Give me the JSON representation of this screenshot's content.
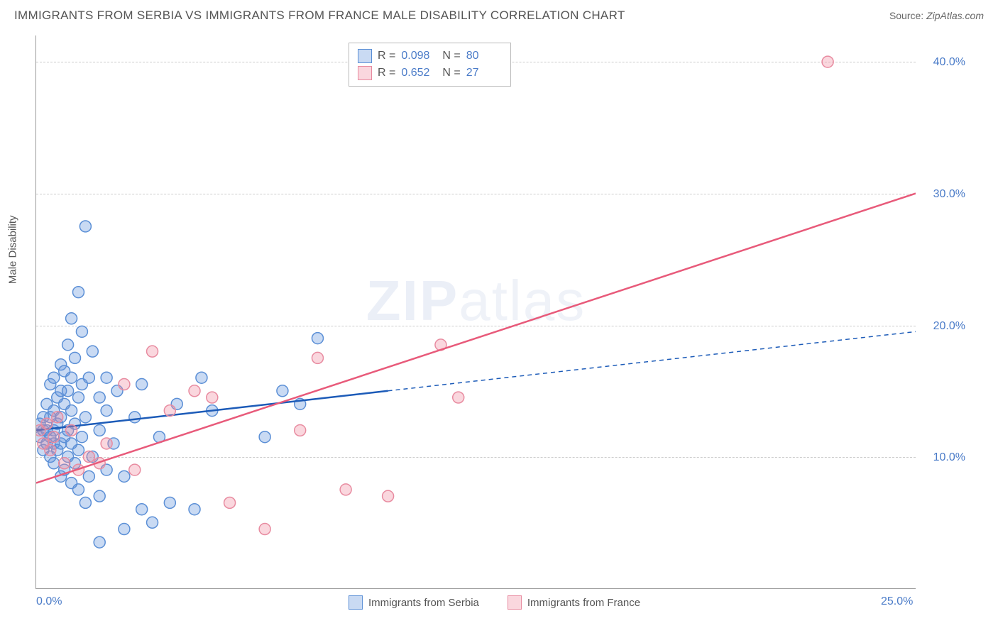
{
  "header": {
    "title": "IMMIGRANTS FROM SERBIA VS IMMIGRANTS FROM FRANCE MALE DISABILITY CORRELATION CHART",
    "source_label": "Source:",
    "source_value": "ZipAtlas.com"
  },
  "chart": {
    "type": "scatter",
    "y_axis_label": "Male Disability",
    "background_color": "#ffffff",
    "grid_color": "#cccccc",
    "axis_color": "#999999",
    "tick_label_color": "#4a7bc8",
    "xlim": [
      0,
      25
    ],
    "ylim": [
      0,
      42
    ],
    "x_ticks": [
      {
        "value": 0,
        "label": "0.0%"
      },
      {
        "value": 25,
        "label": "25.0%"
      }
    ],
    "y_ticks": [
      {
        "value": 10,
        "label": "10.0%"
      },
      {
        "value": 20,
        "label": "20.0%"
      },
      {
        "value": 30,
        "label": "30.0%"
      },
      {
        "value": 40,
        "label": "40.0%"
      }
    ],
    "watermark_text_bold": "ZIP",
    "watermark_text_light": "atlas",
    "series": [
      {
        "name": "Immigrants from Serbia",
        "color_fill": "rgba(100,150,220,0.35)",
        "color_stroke": "#5b8fd6",
        "trend_color": "#1c5bb8",
        "marker_radius": 8,
        "regression": {
          "r": "0.098",
          "n": "80",
          "x1": 0,
          "y1": 12.0,
          "x2": 10,
          "y2": 15.0,
          "x2_extrap": 25,
          "y2_extrap": 19.5
        },
        "points": [
          [
            0.1,
            11.5
          ],
          [
            0.1,
            12.5
          ],
          [
            0.2,
            10.5
          ],
          [
            0.2,
            12.0
          ],
          [
            0.2,
            13.0
          ],
          [
            0.3,
            11.0
          ],
          [
            0.3,
            12.0
          ],
          [
            0.3,
            14.0
          ],
          [
            0.4,
            10.0
          ],
          [
            0.4,
            11.5
          ],
          [
            0.4,
            13.0
          ],
          [
            0.4,
            15.5
          ],
          [
            0.5,
            9.5
          ],
          [
            0.5,
            11.0
          ],
          [
            0.5,
            12.0
          ],
          [
            0.5,
            13.5
          ],
          [
            0.5,
            16.0
          ],
          [
            0.6,
            10.5
          ],
          [
            0.6,
            12.5
          ],
          [
            0.6,
            14.5
          ],
          [
            0.7,
            8.5
          ],
          [
            0.7,
            11.0
          ],
          [
            0.7,
            13.0
          ],
          [
            0.7,
            15.0
          ],
          [
            0.7,
            17.0
          ],
          [
            0.8,
            9.0
          ],
          [
            0.8,
            11.5
          ],
          [
            0.8,
            14.0
          ],
          [
            0.8,
            16.5
          ],
          [
            0.9,
            10.0
          ],
          [
            0.9,
            12.0
          ],
          [
            0.9,
            15.0
          ],
          [
            0.9,
            18.5
          ],
          [
            1.0,
            8.0
          ],
          [
            1.0,
            11.0
          ],
          [
            1.0,
            13.5
          ],
          [
            1.0,
            16.0
          ],
          [
            1.0,
            20.5
          ],
          [
            1.1,
            9.5
          ],
          [
            1.1,
            12.5
          ],
          [
            1.1,
            17.5
          ],
          [
            1.2,
            7.5
          ],
          [
            1.2,
            10.5
          ],
          [
            1.2,
            14.5
          ],
          [
            1.2,
            22.5
          ],
          [
            1.3,
            11.5
          ],
          [
            1.3,
            15.5
          ],
          [
            1.3,
            19.5
          ],
          [
            1.4,
            6.5
          ],
          [
            1.4,
            13.0
          ],
          [
            1.4,
            27.5
          ],
          [
            1.5,
            8.5
          ],
          [
            1.5,
            16.0
          ],
          [
            1.6,
            10.0
          ],
          [
            1.6,
            18.0
          ],
          [
            1.8,
            7.0
          ],
          [
            1.8,
            12.0
          ],
          [
            1.8,
            14.5
          ],
          [
            2.0,
            9.0
          ],
          [
            2.0,
            13.5
          ],
          [
            2.0,
            16.0
          ],
          [
            2.2,
            11.0
          ],
          [
            2.3,
            15.0
          ],
          [
            2.5,
            8.5
          ],
          [
            2.5,
            4.5
          ],
          [
            2.8,
            13.0
          ],
          [
            3.0,
            15.5
          ],
          [
            3.0,
            6.0
          ],
          [
            3.3,
            5.0
          ],
          [
            3.5,
            11.5
          ],
          [
            3.8,
            6.5
          ],
          [
            4.0,
            14.0
          ],
          [
            4.5,
            6.0
          ],
          [
            4.7,
            16.0
          ],
          [
            5.0,
            13.5
          ],
          [
            6.5,
            11.5
          ],
          [
            7.0,
            15.0
          ],
          [
            7.5,
            14.0
          ],
          [
            8.0,
            19.0
          ],
          [
            1.8,
            3.5
          ]
        ]
      },
      {
        "name": "Immigrants from France",
        "color_fill": "rgba(240,140,160,0.35)",
        "color_stroke": "#e88ba0",
        "trend_color": "#e85a7a",
        "marker_radius": 8,
        "regression": {
          "r": "0.652",
          "n": "27",
          "x1": 0,
          "y1": 8.0,
          "x2": 25,
          "y2": 30.0
        },
        "points": [
          [
            0.1,
            12.0
          ],
          [
            0.2,
            11.0
          ],
          [
            0.3,
            12.5
          ],
          [
            0.4,
            10.5
          ],
          [
            0.5,
            11.5
          ],
          [
            0.6,
            13.0
          ],
          [
            0.8,
            9.5
          ],
          [
            1.0,
            12.0
          ],
          [
            1.2,
            9.0
          ],
          [
            1.5,
            10.0
          ],
          [
            1.8,
            9.5
          ],
          [
            2.0,
            11.0
          ],
          [
            2.5,
            15.5
          ],
          [
            2.8,
            9.0
          ],
          [
            3.3,
            18.0
          ],
          [
            3.8,
            13.5
          ],
          [
            4.5,
            15.0
          ],
          [
            5.0,
            14.5
          ],
          [
            5.5,
            6.5
          ],
          [
            6.5,
            4.5
          ],
          [
            7.5,
            12.0
          ],
          [
            8.0,
            17.5
          ],
          [
            8.8,
            7.5
          ],
          [
            10.0,
            7.0
          ],
          [
            11.5,
            18.5
          ],
          [
            12.0,
            14.5
          ],
          [
            22.5,
            40.0
          ]
        ]
      }
    ],
    "legend_top": {
      "r_label": "R =",
      "n_label": "N ="
    },
    "legend_bottom": [
      {
        "label": "Immigrants from Serbia",
        "fill": "rgba(100,150,220,0.35)",
        "stroke": "#5b8fd6"
      },
      {
        "label": "Immigrants from France",
        "fill": "rgba(240,140,160,0.35)",
        "stroke": "#e88ba0"
      }
    ]
  }
}
